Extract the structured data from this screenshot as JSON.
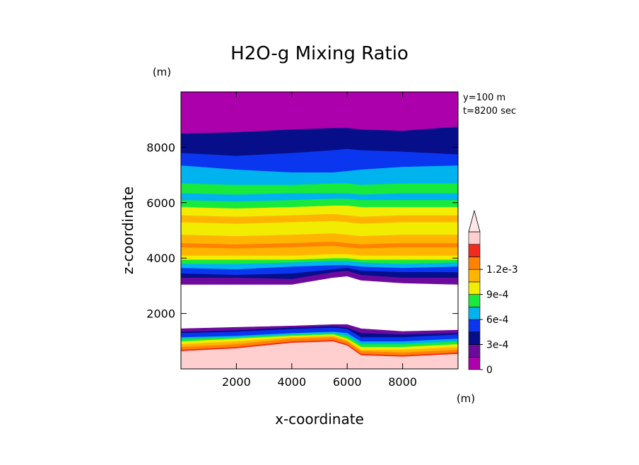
{
  "chart_data": {
    "type": "contour",
    "title": "H2O-g Mixing Ratio",
    "xlabel": "x-coordinate",
    "ylabel": "z-coordinate",
    "x_unit": "(m)",
    "y_unit": "(m)",
    "info_lines": [
      "y=100 m",
      "t=8200 sec"
    ],
    "xlim": [
      0,
      10000
    ],
    "ylim": [
      0,
      10000
    ],
    "x_ticks": [
      2000,
      4000,
      6000,
      8000
    ],
    "y_ticks": [
      2000,
      4000,
      6000,
      8000
    ],
    "x_tick_labels": [
      "2000",
      "4000",
      "6000",
      "8000"
    ],
    "y_tick_labels": [
      "2000",
      "4000",
      "6000",
      "8000"
    ],
    "colorbar": {
      "min": 0,
      "max": 0.00135,
      "step": 0.00015,
      "extend": "max",
      "colors": [
        "#ab00ab",
        "#6d0a9e",
        "#060e8a",
        "#0b36f0",
        "#00b3ee",
        "#17ea3c",
        "#f1ec00",
        "#ffb500",
        "#ff8200",
        "#f22b1e",
        "#ffcfcf"
      ],
      "labels": [
        {
          "value": 0,
          "text": "0"
        },
        {
          "value": 0.0003,
          "text": "3e-4"
        },
        {
          "value": 0.0006,
          "text": "6e-4"
        },
        {
          "value": 0.0009,
          "text": "9e-4"
        },
        {
          "value": 0.0012,
          "text": "1.2e-3"
        }
      ]
    },
    "profile_x": [
      0,
      2000,
      4000,
      5500,
      6000,
      6500,
      8000,
      10000
    ],
    "bands": [
      {
        "level_index": 10,
        "z_bottom": [
          0,
          0,
          0,
          0,
          0,
          0,
          0,
          0
        ],
        "z_top": [
          650,
          750,
          950,
          1000,
          850,
          500,
          450,
          550
        ]
      },
      {
        "level_index": 9,
        "z_bottom": [
          650,
          750,
          950,
          1000,
          850,
          500,
          450,
          550
        ],
        "z_top": [
          700,
          800,
          1000,
          1050,
          900,
          550,
          500,
          600
        ]
      },
      {
        "level_index": 8,
        "z_bottom": [
          700,
          800,
          1000,
          1050,
          900,
          550,
          500,
          600
        ],
        "z_top": [
          800,
          900,
          1100,
          1150,
          1000,
          650,
          600,
          700
        ]
      },
      {
        "level_index": 7,
        "z_bottom": [
          800,
          900,
          1100,
          1150,
          1000,
          650,
          600,
          700
        ],
        "z_top": [
          900,
          1000,
          1150,
          1200,
          1050,
          700,
          700,
          800
        ]
      },
      {
        "level_index": 6,
        "z_bottom": [
          900,
          1000,
          1150,
          1200,
          1050,
          700,
          700,
          800
        ],
        "z_top": [
          1000,
          1100,
          1200,
          1250,
          1100,
          800,
          800,
          900
        ]
      },
      {
        "level_index": 5,
        "z_bottom": [
          1000,
          1100,
          1200,
          1250,
          1100,
          800,
          800,
          900
        ],
        "z_top": [
          1100,
          1150,
          1250,
          1300,
          1200,
          900,
          900,
          1000
        ]
      },
      {
        "level_index": 4,
        "z_bottom": [
          1100,
          1150,
          1250,
          1300,
          1200,
          900,
          900,
          1000
        ],
        "z_top": [
          1150,
          1200,
          1300,
          1350,
          1300,
          1000,
          1000,
          1100
        ]
      },
      {
        "level_index": 3,
        "z_bottom": [
          1150,
          1200,
          1300,
          1350,
          1300,
          1000,
          1000,
          1100
        ],
        "z_top": [
          1300,
          1350,
          1450,
          1500,
          1450,
          1150,
          1150,
          1250
        ]
      },
      {
        "level_index": 2,
        "z_bottom": [
          1300,
          1350,
          1450,
          1500,
          1450,
          1150,
          1150,
          1250
        ],
        "z_top": [
          1350,
          1400,
          1500,
          1550,
          1500,
          1300,
          1250,
          1300
        ]
      },
      {
        "level_index": 1,
        "z_bottom": [
          1350,
          1400,
          1500,
          1550,
          1500,
          1300,
          1250,
          1300
        ],
        "z_top": [
          1450,
          1500,
          1550,
          1600,
          1600,
          1450,
          1350,
          1400
        ]
      },
      {
        "level_index": 1,
        "z_bottom": [
          3050,
          3050,
          3050,
          3300,
          3350,
          3200,
          3100,
          3050
        ],
        "z_top": [
          3300,
          3300,
          3250,
          3500,
          3550,
          3400,
          3300,
          3300
        ]
      },
      {
        "level_index": 2,
        "z_bottom": [
          3300,
          3300,
          3250,
          3500,
          3550,
          3400,
          3300,
          3300
        ],
        "z_top": [
          3450,
          3400,
          3450,
          3600,
          3650,
          3550,
          3500,
          3500
        ]
      },
      {
        "level_index": 3,
        "z_bottom": [
          3450,
          3400,
          3450,
          3600,
          3650,
          3550,
          3500,
          3500
        ],
        "z_top": [
          3650,
          3600,
          3700,
          3750,
          3750,
          3700,
          3650,
          3700
        ]
      },
      {
        "level_index": 4,
        "z_bottom": [
          3650,
          3600,
          3700,
          3750,
          3750,
          3700,
          3650,
          3700
        ],
        "z_top": [
          3800,
          3800,
          3850,
          3900,
          3900,
          3850,
          3800,
          3850
        ]
      },
      {
        "level_index": 5,
        "z_bottom": [
          3800,
          3800,
          3850,
          3900,
          3900,
          3850,
          3800,
          3850
        ],
        "z_top": [
          3950,
          3950,
          3950,
          4000,
          4000,
          3950,
          3950,
          3950
        ]
      },
      {
        "level_index": 6,
        "z_bottom": [
          3950,
          3950,
          3950,
          4000,
          4000,
          3950,
          3950,
          3950
        ],
        "z_top": [
          4100,
          4100,
          4100,
          4150,
          4150,
          4100,
          4100,
          4100
        ]
      },
      {
        "level_index": 7,
        "z_bottom": [
          4100,
          4100,
          4100,
          4150,
          4150,
          4100,
          4100,
          4100
        ],
        "z_top": [
          4400,
          4350,
          4400,
          4450,
          4400,
          4350,
          4400,
          4400
        ]
      },
      {
        "level_index": 8,
        "z_bottom": [
          4400,
          4350,
          4400,
          4450,
          4400,
          4350,
          4400,
          4400
        ],
        "z_top": [
          4550,
          4500,
          4550,
          4600,
          4550,
          4500,
          4550,
          4550
        ]
      },
      {
        "level_index": 7,
        "z_bottom": [
          4550,
          4500,
          4550,
          4600,
          4550,
          4500,
          4550,
          4550
        ],
        "z_top": [
          4850,
          4800,
          4850,
          4900,
          4850,
          4800,
          4850,
          4850
        ]
      },
      {
        "level_index": 6,
        "z_bottom": [
          4850,
          4800,
          4850,
          4900,
          4850,
          4800,
          4850,
          4850
        ],
        "z_top": [
          5300,
          5250,
          5300,
          5350,
          5300,
          5250,
          5300,
          5300
        ]
      },
      {
        "level_index": 7,
        "z_bottom": [
          5300,
          5250,
          5300,
          5350,
          5300,
          5250,
          5300,
          5300
        ],
        "z_top": [
          5550,
          5500,
          5550,
          5600,
          5550,
          5500,
          5550,
          5550
        ]
      },
      {
        "level_index": 6,
        "z_bottom": [
          5550,
          5500,
          5550,
          5600,
          5550,
          5500,
          5550,
          5550
        ],
        "z_top": [
          5850,
          5800,
          5850,
          5900,
          5900,
          5850,
          5850,
          5850
        ]
      },
      {
        "level_index": 5,
        "z_bottom": [
          5850,
          5800,
          5850,
          5900,
          5900,
          5850,
          5850,
          5850
        ],
        "z_top": [
          6100,
          6050,
          6100,
          6150,
          6150,
          6100,
          6100,
          6100
        ]
      },
      {
        "level_index": 4,
        "z_bottom": [
          6100,
          6050,
          6100,
          6150,
          6150,
          6100,
          6100,
          6100
        ],
        "z_top": [
          6350,
          6300,
          6350,
          6350,
          6350,
          6300,
          6350,
          6350
        ]
      },
      {
        "level_index": 5,
        "z_bottom": [
          6350,
          6300,
          6350,
          6350,
          6350,
          6300,
          6350,
          6350
        ],
        "z_top": [
          6700,
          6650,
          6650,
          6700,
          6700,
          6650,
          6700,
          6700
        ]
      },
      {
        "level_index": 4,
        "z_bottom": [
          6700,
          6650,
          6650,
          6700,
          6700,
          6650,
          6700,
          6700
        ],
        "z_top": [
          7350,
          7200,
          7100,
          7100,
          7150,
          7200,
          7300,
          7350
        ]
      },
      {
        "level_index": 3,
        "z_bottom": [
          7350,
          7200,
          7100,
          7100,
          7150,
          7200,
          7300,
          7350
        ],
        "z_top": [
          7800,
          7700,
          7800,
          7900,
          7950,
          7900,
          7850,
          7750
        ]
      },
      {
        "level_index": 2,
        "z_bottom": [
          7800,
          7700,
          7800,
          7900,
          7950,
          7900,
          7850,
          7750
        ],
        "z_top": [
          8500,
          8550,
          8650,
          8700,
          8700,
          8650,
          8600,
          8750
        ]
      },
      {
        "level_index": 0,
        "z_bottom": [
          8500,
          8550,
          8650,
          8700,
          8700,
          8650,
          8600,
          8750
        ],
        "z_top": [
          10000,
          10000,
          10000,
          10000,
          10000,
          10000,
          10000,
          10000
        ]
      }
    ]
  }
}
